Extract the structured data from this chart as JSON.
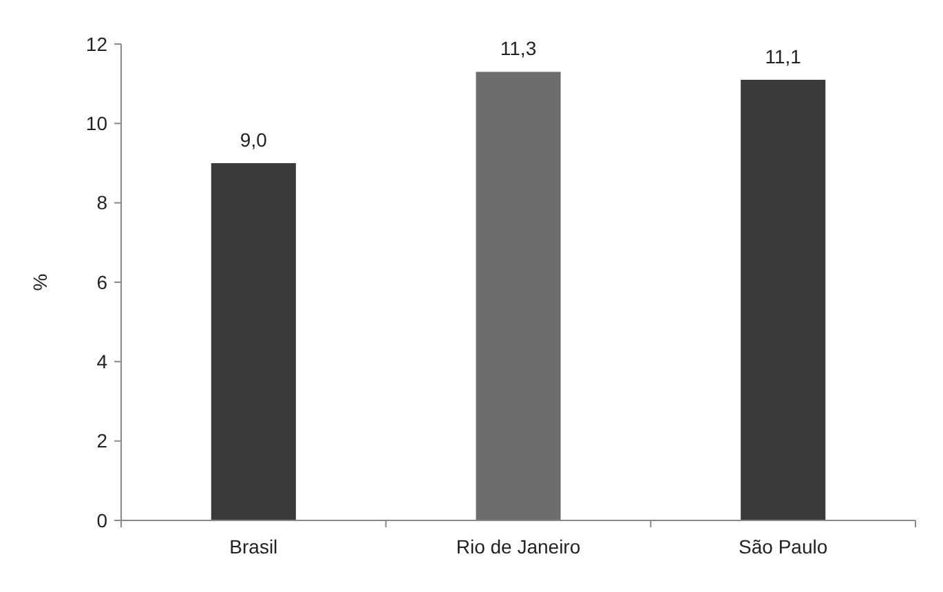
{
  "chart_data": {
    "type": "bar",
    "ylabel": "%",
    "categories": [
      "Brasil",
      "Rio de Janeiro",
      "São Paulo"
    ],
    "values": [
      9.0,
      11.3,
      11.1
    ],
    "value_labels": [
      "9,0",
      "11,3",
      "11,1"
    ],
    "colors": [
      "#3a3a3a",
      "#6d6d6d",
      "#3a3a3a"
    ],
    "ylim": [
      0,
      12
    ],
    "yticks": [
      0,
      2,
      4,
      6,
      8,
      10,
      12
    ],
    "grid": false
  }
}
